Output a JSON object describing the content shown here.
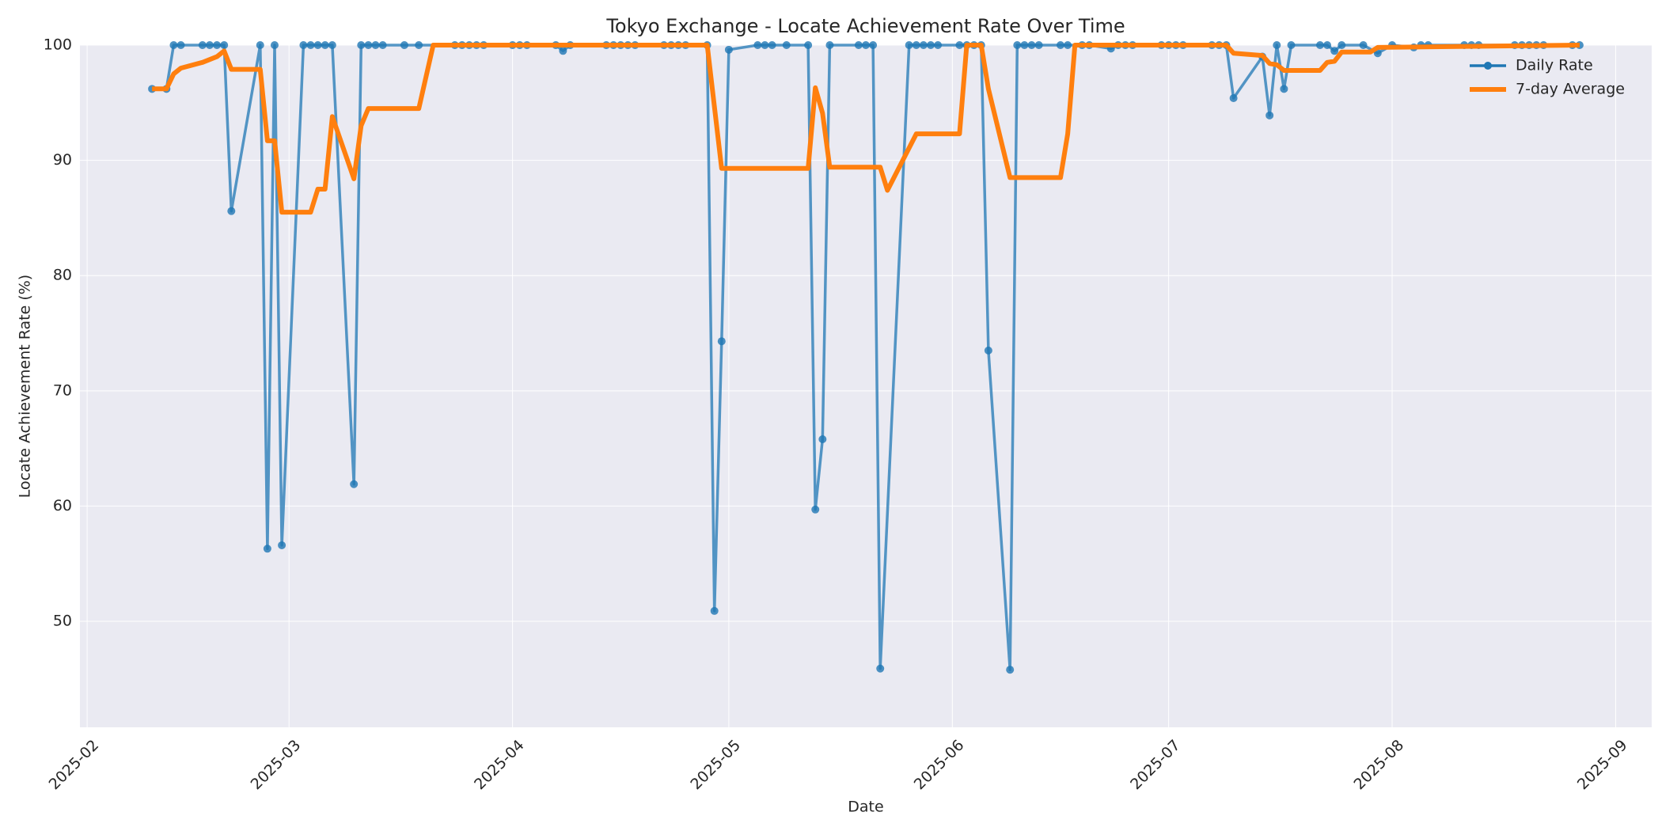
{
  "chart_data": {
    "type": "line",
    "title": "Tokyo Exchange - Locate Achievement Rate Over Time",
    "x_label": "Date",
    "y_label": "Locate Achievement Rate (%)",
    "xlim": [
      "2025-01-31",
      "2025-09-06"
    ],
    "xticks": [
      "2025-02",
      "2025-03",
      "2025-04",
      "2025-05",
      "2025-06",
      "2025-07",
      "2025-08",
      "2025-09"
    ],
    "ylim": [
      40.8,
      100
    ],
    "yticks": [
      50,
      60,
      70,
      80,
      90,
      100
    ],
    "grid": true,
    "legend": "upper right",
    "series": [
      {
        "name": "Daily Rate",
        "color": "#1f77b4",
        "markers": true,
        "x": [
          "2025-02-10",
          "2025-02-12",
          "2025-02-13",
          "2025-02-14",
          "2025-02-17",
          "2025-02-18",
          "2025-02-19",
          "2025-02-20",
          "2025-02-21",
          "2025-02-25",
          "2025-02-26",
          "2025-02-27",
          "2025-02-28",
          "2025-03-03",
          "2025-03-04",
          "2025-03-05",
          "2025-03-06",
          "2025-03-07",
          "2025-03-10",
          "2025-03-11",
          "2025-03-12",
          "2025-03-13",
          "2025-03-14",
          "2025-03-17",
          "2025-03-19",
          "2025-03-24",
          "2025-03-25",
          "2025-03-26",
          "2025-03-27",
          "2025-03-28",
          "2025-04-01",
          "2025-04-02",
          "2025-04-03",
          "2025-04-07",
          "2025-04-08",
          "2025-04-09",
          "2025-04-14",
          "2025-04-15",
          "2025-04-16",
          "2025-04-17",
          "2025-04-18",
          "2025-04-22",
          "2025-04-23",
          "2025-04-24",
          "2025-04-25",
          "2025-04-28",
          "2025-04-29",
          "2025-04-30",
          "2025-05-01",
          "2025-05-05",
          "2025-05-06",
          "2025-05-07",
          "2025-05-09",
          "2025-05-12",
          "2025-05-13",
          "2025-05-14",
          "2025-05-15",
          "2025-05-19",
          "2025-05-20",
          "2025-05-21",
          "2025-05-22",
          "2025-05-26",
          "2025-05-27",
          "2025-05-28",
          "2025-05-29",
          "2025-05-30",
          "2025-06-02",
          "2025-06-03",
          "2025-06-04",
          "2025-06-05",
          "2025-06-06",
          "2025-06-09",
          "2025-06-10",
          "2025-06-11",
          "2025-06-12",
          "2025-06-13",
          "2025-06-16",
          "2025-06-17",
          "2025-06-19",
          "2025-06-20",
          "2025-06-23",
          "2025-06-24",
          "2025-06-25",
          "2025-06-26",
          "2025-06-30",
          "2025-07-01",
          "2025-07-02",
          "2025-07-03",
          "2025-07-07",
          "2025-07-08",
          "2025-07-09",
          "2025-07-10",
          "2025-07-14",
          "2025-07-15",
          "2025-07-16",
          "2025-07-17",
          "2025-07-18",
          "2025-07-22",
          "2025-07-23",
          "2025-07-24",
          "2025-07-25",
          "2025-07-28",
          "2025-07-30",
          "2025-08-01",
          "2025-08-04",
          "2025-08-05",
          "2025-08-06",
          "2025-08-11",
          "2025-08-12",
          "2025-08-13",
          "2025-08-18",
          "2025-08-19",
          "2025-08-20",
          "2025-08-21",
          "2025-08-22",
          "2025-08-26",
          "2025-08-27"
        ],
        "values": [
          96.2,
          96.2,
          100,
          100,
          100,
          100,
          100,
          100,
          85.6,
          100,
          56.3,
          100,
          56.6,
          100,
          100,
          100,
          100,
          100,
          61.9,
          100,
          100,
          100,
          100,
          100,
          100,
          100,
          100,
          100,
          100,
          100,
          100,
          100,
          100,
          100,
          99.5,
          100,
          100,
          100,
          100,
          100,
          100,
          100,
          100,
          100,
          100,
          100,
          50.9,
          74.3,
          99.6,
          100,
          100,
          100,
          100,
          100,
          59.7,
          65.8,
          100,
          100,
          100,
          100,
          45.9,
          100,
          100,
          100,
          100,
          100,
          100,
          100,
          100,
          100,
          73.5,
          45.8,
          100,
          100,
          100,
          100,
          100,
          100,
          100,
          100,
          99.7,
          100,
          100,
          100,
          100,
          100,
          100,
          100,
          100,
          100,
          100,
          95.4,
          99.0,
          93.9,
          100,
          96.2,
          100,
          100,
          100,
          99.5,
          100,
          100,
          99.3,
          100,
          99.8,
          100,
          100,
          100,
          100,
          100,
          100,
          100,
          100,
          100,
          100,
          100,
          100
        ]
      },
      {
        "name": "7-day Average",
        "color": "#ff7f0e",
        "markers": false,
        "x": [
          "2025-02-10",
          "2025-02-12",
          "2025-02-13",
          "2025-02-14",
          "2025-02-17",
          "2025-02-19",
          "2025-02-20",
          "2025-02-21",
          "2025-02-25",
          "2025-02-26",
          "2025-02-27",
          "2025-02-28",
          "2025-03-04",
          "2025-03-05",
          "2025-03-06",
          "2025-03-07",
          "2025-03-10",
          "2025-03-11",
          "2025-03-12",
          "2025-03-19",
          "2025-03-21",
          "2025-04-28",
          "2025-04-30",
          "2025-05-12",
          "2025-05-13",
          "2025-05-14",
          "2025-05-15",
          "2025-05-22",
          "2025-05-23",
          "2025-05-27",
          "2025-06-02",
          "2025-06-03",
          "2025-06-05",
          "2025-06-06",
          "2025-06-09",
          "2025-06-16",
          "2025-06-17",
          "2025-06-18",
          "2025-07-09",
          "2025-07-10",
          "2025-07-14",
          "2025-07-15",
          "2025-07-16",
          "2025-07-17",
          "2025-07-22",
          "2025-07-23",
          "2025-07-24",
          "2025-07-25",
          "2025-07-29",
          "2025-07-30",
          "2025-08-27"
        ],
        "values": [
          96.2,
          96.2,
          97.5,
          98.0,
          98.5,
          99.0,
          99.5,
          97.9,
          97.9,
          91.7,
          91.7,
          85.5,
          85.5,
          87.5,
          87.5,
          93.8,
          88.4,
          93.0,
          94.5,
          94.5,
          100,
          100,
          89.3,
          89.3,
          96.3,
          94.1,
          89.4,
          89.4,
          87.4,
          92.3,
          92.3,
          100,
          100,
          96.2,
          88.5,
          88.5,
          92.3,
          100,
          100,
          99.3,
          99.1,
          98.4,
          98.3,
          97.8,
          97.8,
          98.5,
          98.6,
          99.4,
          99.4,
          99.8,
          100
        ]
      }
    ]
  }
}
